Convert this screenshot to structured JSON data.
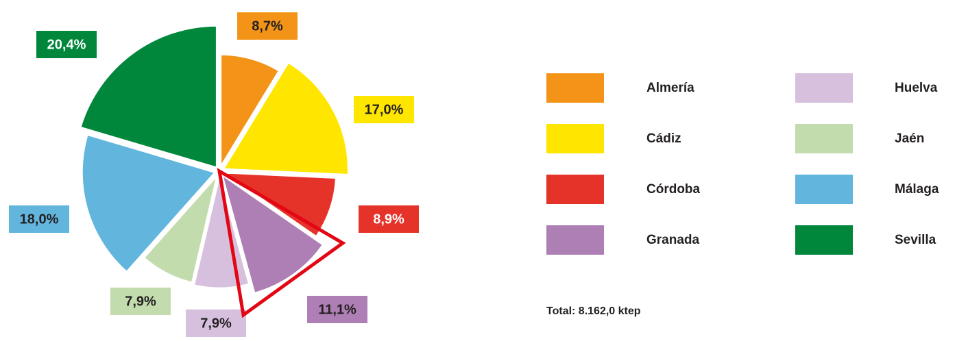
{
  "chart_data": {
    "type": "pie",
    "categories": [
      "Almería",
      "Cádiz",
      "Córdoba",
      "Granada",
      "Huelva",
      "Jaén",
      "Málaga",
      "Sevilla"
    ],
    "values": [
      8.7,
      17.0,
      8.9,
      11.1,
      7.9,
      7.9,
      18.0,
      20.4
    ],
    "value_labels": [
      "8,7%",
      "17,0%",
      "8,9%",
      "11,1%",
      "7,9%",
      "7,9%",
      "18,0%",
      "20,4%"
    ],
    "colors": [
      "#f39419",
      "#ffe600",
      "#e5332a",
      "#ae7fb5",
      "#d7c0dd",
      "#c2dcae",
      "#62b5dc",
      "#00873c"
    ],
    "annotation": "Total: 8.162,0 ktep"
  }
}
